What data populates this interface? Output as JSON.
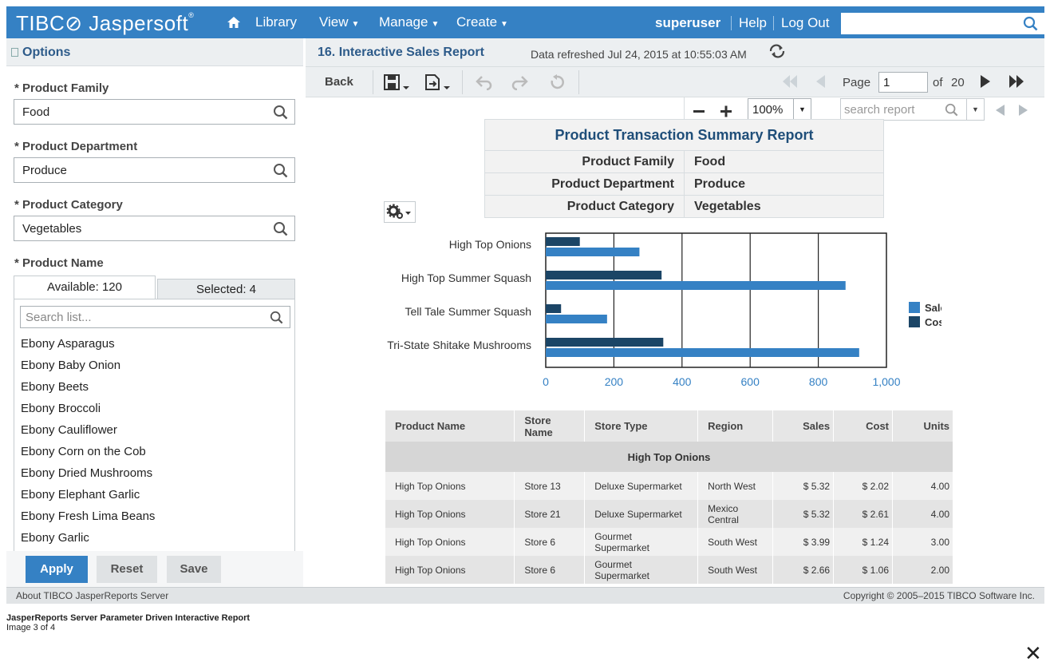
{
  "nav": {
    "logo": "TIBC⊘ Jaspersoft",
    "items": [
      "Library",
      "View",
      "Manage",
      "Create"
    ],
    "user": "superuser",
    "help": "Help",
    "logout": "Log Out",
    "search_value": ""
  },
  "options": {
    "title": "Options",
    "family_label": "* Product Family",
    "family_value": "Food",
    "department_label": "* Product Department",
    "department_value": "Produce",
    "category_label": "* Product Category",
    "category_value": "Vegetables",
    "name_label": "* Product Name",
    "tab_available": "Available: 120",
    "tab_selected": "Selected: 4",
    "search_placeholder": "Search list...",
    "items": [
      "Ebony Asparagus",
      "Ebony Baby Onion",
      "Ebony Beets",
      "Ebony Broccoli",
      "Ebony Cauliflower",
      "Ebony Corn on the Cob",
      "Ebony Dried Mushrooms",
      "Ebony Elephant Garlic",
      "Ebony Fresh Lima Beans",
      "Ebony Garlic"
    ],
    "apply": "Apply",
    "reset": "Reset",
    "save": "Save"
  },
  "report": {
    "title": "16. Interactive Sales Report",
    "refreshed": "Data refreshed Jul 24, 2015 at 10:55:03 AM",
    "back": "Back",
    "page_label": "Page",
    "page_value": "1",
    "of_label": "of",
    "total_pages": "20",
    "zoom": "100%",
    "search_placeholder": "search report"
  },
  "summary": {
    "title": "Product Transaction Summary Report",
    "rows": [
      {
        "key": "Product Family",
        "value": "Food"
      },
      {
        "key": "Product Department",
        "value": "Produce"
      },
      {
        "key": "Product Category",
        "value": "Vegetables"
      }
    ]
  },
  "colors": {
    "sales": "#3581c4",
    "cost": "#1b4566",
    "brand": "#3581c4"
  },
  "chart_data": {
    "type": "bar",
    "orientation": "horizontal",
    "categories": [
      "High Top Onions",
      "High Top Summer Squash",
      "Tell Tale Summer Squash",
      "Tri-State Shitake Mushrooms"
    ],
    "series": [
      {
        "name": "Sales",
        "values": [
          275,
          880,
          180,
          920
        ]
      },
      {
        "name": "Cost",
        "values": [
          100,
          340,
          45,
          345
        ]
      }
    ],
    "xlim": [
      0,
      1000
    ],
    "xticks": [
      "0",
      "200",
      "400",
      "600",
      "800",
      "1,000"
    ],
    "legend": "right"
  },
  "table": {
    "headers": [
      "Product Name",
      "Store Name",
      "Store Type",
      "Region",
      "Sales",
      "Cost",
      "Units"
    ],
    "group": "High Top Onions",
    "rows": [
      [
        "High Top Onions",
        "Store 13",
        "Deluxe Supermarket",
        "North West",
        "$ 5.32",
        "$ 2.02",
        "4.00"
      ],
      [
        "High Top Onions",
        "Store 21",
        "Deluxe Supermarket",
        "Mexico Central",
        "$ 5.32",
        "$ 2.61",
        "4.00"
      ],
      [
        "High Top Onions",
        "Store 6",
        "Gourmet Supermarket",
        "South West",
        "$ 3.99",
        "$ 1.24",
        "3.00"
      ],
      [
        "High Top Onions",
        "Store 6",
        "Gourmet Supermarket",
        "South West",
        "$ 2.66",
        "$ 1.06",
        "2.00"
      ]
    ]
  },
  "footer": {
    "about": "About TIBCO JasperReports Server",
    "copyright": "Copyright © 2005–2015 TIBCO Software Inc."
  },
  "caption": {
    "title": "JasperReports Server Parameter Driven Interactive Report",
    "subtitle": "Image 3 of 4"
  }
}
